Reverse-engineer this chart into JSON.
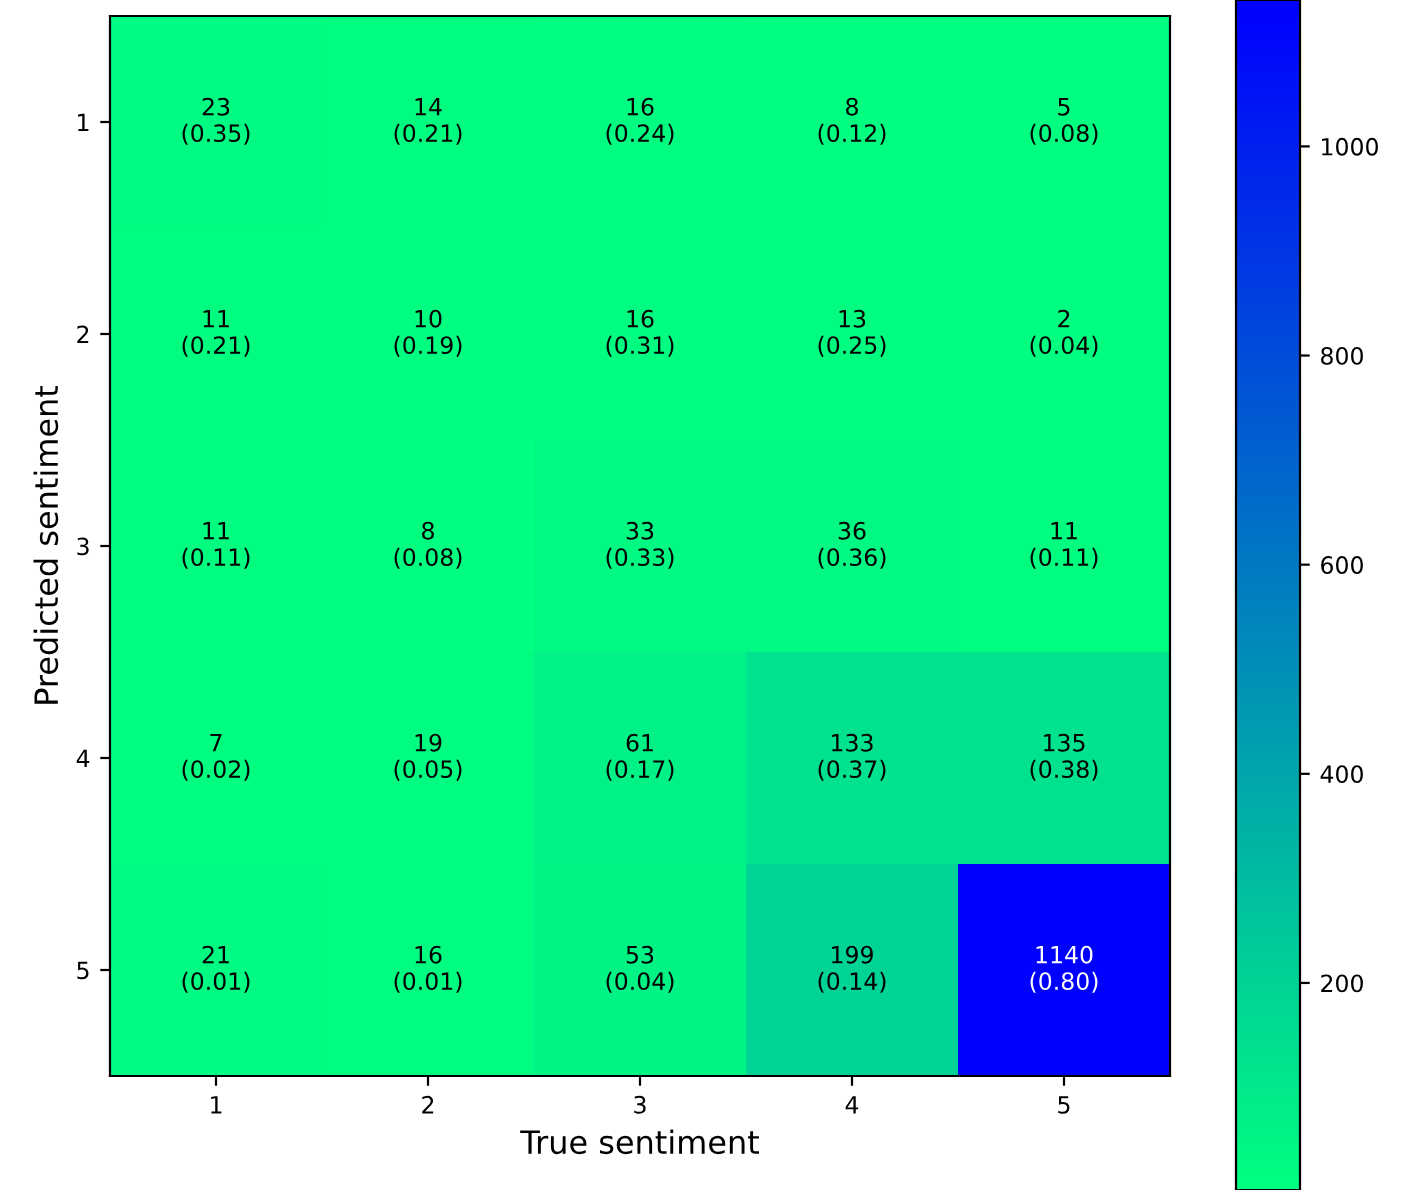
{
  "chart_data": {
    "type": "heatmap",
    "xlabel": "True sentiment",
    "ylabel": "Predicted sentiment",
    "categories": [
      "1",
      "2",
      "3",
      "4",
      "5"
    ],
    "y_categories": [
      "1",
      "2",
      "3",
      "4",
      "5"
    ],
    "cells": [
      [
        23,
        14,
        16,
        8,
        5
      ],
      [
        11,
        10,
        16,
        13,
        2
      ],
      [
        11,
        8,
        33,
        36,
        11
      ],
      [
        7,
        19,
        61,
        133,
        135
      ],
      [
        21,
        16,
        53,
        199,
        1140
      ]
    ],
    "cell_labels": [
      [
        "23\n(0.35)",
        "14\n(0.21)",
        "16\n(0.24)",
        "8\n(0.12)",
        "5\n(0.08)"
      ],
      [
        "11\n(0.21)",
        "10\n(0.19)",
        "16\n(0.31)",
        "13\n(0.25)",
        "2\n(0.04)"
      ],
      [
        "11\n(0.11)",
        "8\n(0.08)",
        "33\n(0.33)",
        "36\n(0.36)",
        "11\n(0.11)"
      ],
      [
        "7\n(0.02)",
        "19\n(0.05)",
        "61\n(0.17)",
        "133\n(0.37)",
        "135\n(0.38)"
      ],
      [
        "21\n(0.01)",
        "16\n(0.01)",
        "53\n(0.04)",
        "199\n(0.14)",
        "1140\n(0.80)"
      ]
    ],
    "clim": [
      2,
      1140
    ],
    "cticks": [
      200,
      400,
      600,
      800,
      1000
    ]
  }
}
